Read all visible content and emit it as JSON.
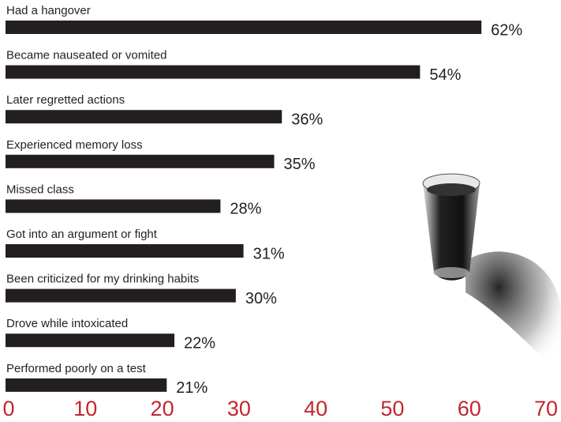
{
  "chart_data": {
    "type": "bar",
    "orientation": "horizontal",
    "categories": [
      "Had a hangover",
      "Became nauseated or vomited",
      "Later regretted actions",
      "Experienced memory loss",
      "Missed class",
      "Got into an argument or fight",
      "Been criticized for my drinking habits",
      "Drove while intoxicated",
      "Performed poorly on a test"
    ],
    "values": [
      62,
      54,
      36,
      35,
      28,
      31,
      30,
      22,
      21
    ],
    "value_labels": [
      "62%",
      "54%",
      "36%",
      "35%",
      "28%",
      "31%",
      "30%",
      "22%",
      "21%"
    ],
    "color": "#231f20",
    "tick_color": "#c1272d",
    "xlim": [
      0,
      70
    ],
    "xticks": [
      0,
      10,
      20,
      30,
      40,
      50,
      60,
      70
    ],
    "grid": false
  }
}
